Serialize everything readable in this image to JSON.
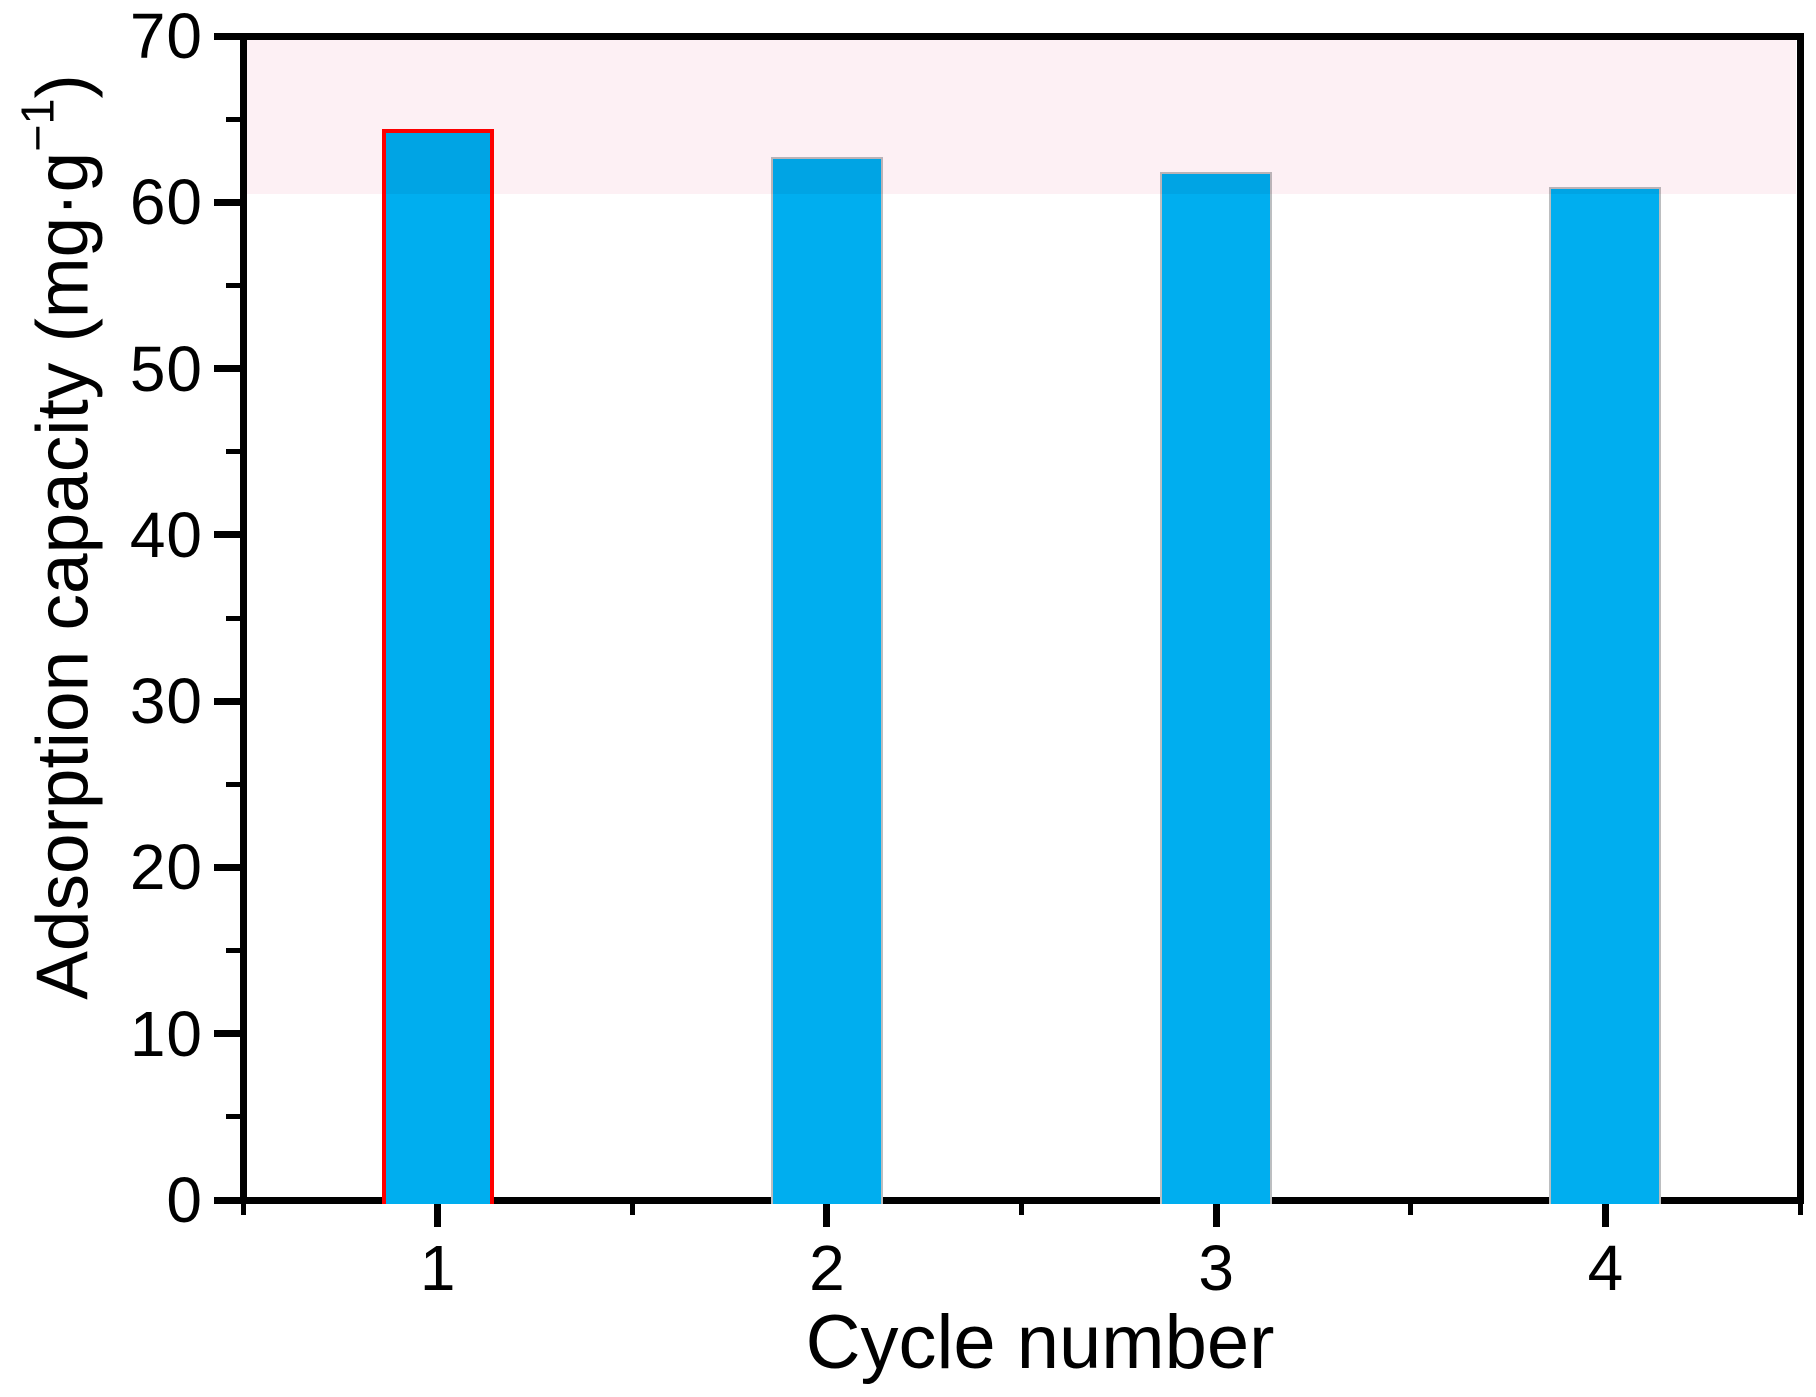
{
  "chart_data": {
    "type": "bar",
    "title": "",
    "categories": [
      "1",
      "2",
      "3",
      "4"
    ],
    "values": [
      64.4,
      62.7,
      61.8,
      60.9
    ],
    "xlabel": "Cycle number",
    "ylabel": "Adsorption capacity (mg·g−1)",
    "ylabel_parts": {
      "base": "Adsorption capacity (mg·g",
      "sup": "−1",
      "end": ")"
    },
    "ylim": [
      0,
      70
    ],
    "y_major_ticks": [
      0,
      10,
      20,
      30,
      40,
      50,
      60,
      70
    ],
    "y_minor_ticks": [
      5,
      15,
      25,
      35,
      45,
      55,
      65
    ],
    "grid": false,
    "legend": null,
    "highlight_band": {
      "ymin": 60.5,
      "ymax": 70,
      "color": "#FDF0F4"
    },
    "colors": {
      "bar_fill": "#00AEEF",
      "bar_outline_default": "#BCBEC0",
      "first_bar_outline": "#FF0000",
      "axis": "#000000",
      "text": "#000000"
    }
  }
}
